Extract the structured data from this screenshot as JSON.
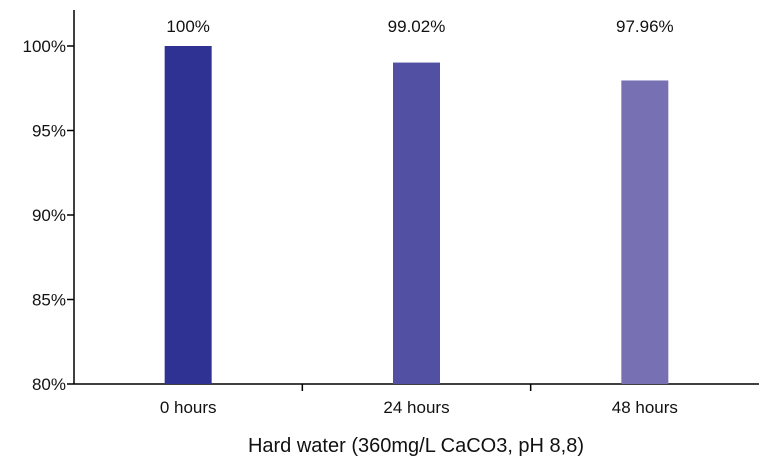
{
  "chart_data": {
    "type": "bar",
    "title": "",
    "xlabel": "Hard water (360mg/L CaCO3, pH 8,8)",
    "ylabel": "",
    "categories": [
      "0 hours",
      "24 hours",
      "48 hours"
    ],
    "values": [
      100,
      99.02,
      97.96
    ],
    "data_labels": [
      "100%",
      "99.02%",
      "97.96%"
    ],
    "bar_colors": [
      "#2f3193",
      "#5250a2",
      "#7771b3"
    ],
    "ylim": [
      80,
      102
    ],
    "yticks": [
      80,
      85,
      90,
      95,
      100
    ],
    "ytick_labels": [
      "80%",
      "85%",
      "90%",
      "95%",
      "100%"
    ],
    "grid": false,
    "legend": "none"
  }
}
